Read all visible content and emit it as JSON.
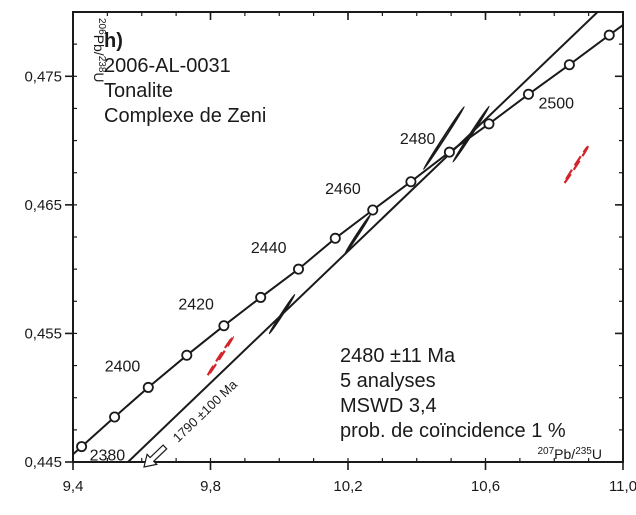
{
  "chart_data": {
    "type": "scatter",
    "panel_label": "h)",
    "sample_lines": [
      "2006-AL-0031",
      "Tonalite",
      "Complexe de Zeni"
    ],
    "x_axis": {
      "label_main": "Pb/",
      "label_sup1": "207",
      "label_sup2": "235",
      "label_end": "U",
      "range": [
        9.4,
        11.0
      ],
      "ticks": [
        9.4,
        9.8,
        10.2,
        10.6,
        11.0
      ],
      "tick_labels": [
        "9,4",
        "9,8",
        "10,2",
        "10,6",
        "11,0"
      ],
      "minor_step": 0.1
    },
    "y_axis": {
      "label_main": "Pb/",
      "label_sup1": "206",
      "label_sup2": "238",
      "label_end": "U",
      "range": [
        0.445,
        0.48
      ],
      "ticks": [
        0.445,
        0.455,
        0.465,
        0.475
      ],
      "tick_labels": [
        "0,445",
        "0,455",
        "0,465",
        "0,475"
      ],
      "minor_step": 0.0025
    },
    "concordia": {
      "points": [
        {
          "age": 2380,
          "x": 9.425,
          "y": 0.4462,
          "label": "2380"
        },
        {
          "age": 2390,
          "x": 9.521,
          "y": 0.4485
        },
        {
          "age": 2400,
          "x": 9.619,
          "y": 0.4508,
          "label": "2400"
        },
        {
          "age": 2410,
          "x": 9.731,
          "y": 0.4533
        },
        {
          "age": 2420,
          "x": 9.839,
          "y": 0.4556,
          "label": "2420"
        },
        {
          "age": 2430,
          "x": 9.946,
          "y": 0.4578
        },
        {
          "age": 2440,
          "x": 10.056,
          "y": 0.46,
          "label": "2440"
        },
        {
          "age": 2450,
          "x": 10.163,
          "y": 0.4624
        },
        {
          "age": 2460,
          "x": 10.272,
          "y": 0.4646,
          "label": "2460"
        },
        {
          "age": 2470,
          "x": 10.383,
          "y": 0.4668
        },
        {
          "age": 2480,
          "x": 10.495,
          "y": 0.4691,
          "label": "2480"
        },
        {
          "age": 2490,
          "x": 10.61,
          "y": 0.4713
        },
        {
          "age": 2500,
          "x": 10.725,
          "y": 0.4736,
          "label": "2500"
        },
        {
          "age": 2510,
          "x": 10.844,
          "y": 0.4759
        },
        {
          "age": 2520,
          "x": 10.96,
          "y": 0.4782
        }
      ]
    },
    "discordia": {
      "x1": 9.56,
      "y1": 0.445,
      "x2": 10.93,
      "y2": 0.4801
    },
    "ellipses": [
      {
        "x": 10.008,
        "y": 0.4565,
        "rx_ratio": 0.0675,
        "ry_ratio": 0.0022,
        "angle_deg": -57,
        "style": "solid"
      },
      {
        "x": 10.228,
        "y": 0.4627,
        "rx_ratio": 0.068,
        "ry_ratio": 0.0023,
        "angle_deg": -57,
        "style": "solid"
      },
      {
        "x": 10.479,
        "y": 0.4702,
        "rx_ratio": 0.108,
        "ry_ratio": 0.0025,
        "angle_deg": -57,
        "style": "solid"
      },
      {
        "x": 10.558,
        "y": 0.4705,
        "rx_ratio": 0.096,
        "ry_ratio": 0.0025,
        "angle_deg": -57,
        "style": "solid"
      },
      {
        "x": 9.828,
        "y": 0.4532,
        "rx_ratio": 0.068,
        "ry_ratio": 0.0022,
        "angle_deg": -57,
        "style": "dashed"
      },
      {
        "x": 10.863,
        "y": 0.4681,
        "rx_ratio": 0.063,
        "ry_ratio": 0.0022,
        "angle_deg": -57,
        "style": "dashed"
      }
    ],
    "discordia_label": "1790 ±100 Ma",
    "result_lines": [
      "2480 ±11 Ma",
      "5 analyses",
      "MSWD 3,4",
      "prob. de coïncidence 1 %"
    ],
    "colors": {
      "line": "#1a1a1a",
      "rejected": "#d2232a",
      "background": "#ffffff"
    }
  }
}
